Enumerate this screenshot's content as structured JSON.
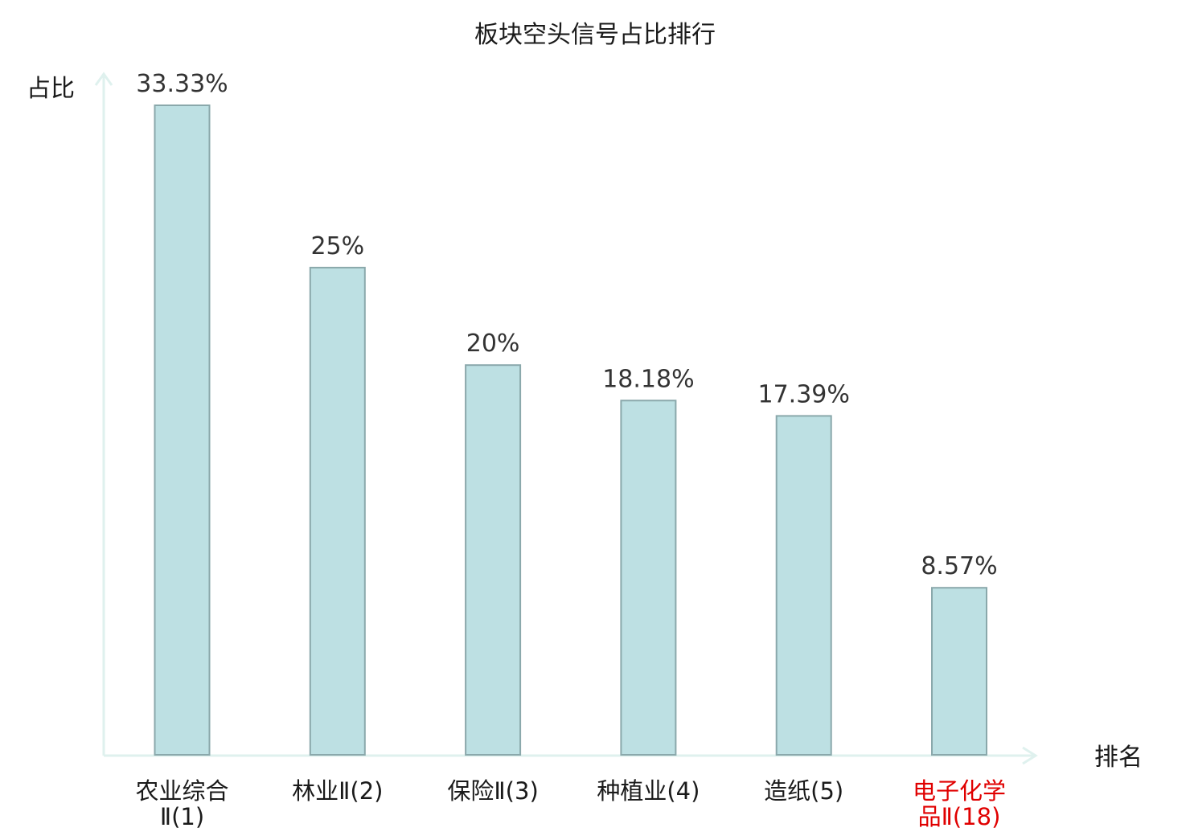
{
  "chart_data": {
    "type": "bar",
    "title": "板块空头信号占比排行",
    "ylabel": "占比",
    "xlabel": "排名",
    "ylim": [
      0,
      35
    ],
    "categories": [
      {
        "line1": "农业综合",
        "line2": "Ⅱ(1)",
        "highlight": false
      },
      {
        "line1": "林业Ⅱ(2)",
        "line2": "",
        "highlight": false
      },
      {
        "line1": "保险Ⅱ(3)",
        "line2": "",
        "highlight": false
      },
      {
        "line1": "种植业(4)",
        "line2": "",
        "highlight": false
      },
      {
        "line1": "造纸(5)",
        "line2": "",
        "highlight": false
      },
      {
        "line1": "电子化学",
        "line2": "品Ⅱ(18)",
        "highlight": true
      }
    ],
    "values": [
      33.33,
      25,
      20,
      18.18,
      17.39,
      8.57
    ],
    "value_labels": [
      "33.33%",
      "25%",
      "20%",
      "18.18%",
      "17.39%",
      "8.57%"
    ],
    "colors": {
      "bar_fill": "#bde0e3",
      "bar_stroke": "#8aa8ab",
      "axis": "#dff1ee",
      "highlight_text": "#e00000"
    },
    "grid": false,
    "legend": "none"
  }
}
